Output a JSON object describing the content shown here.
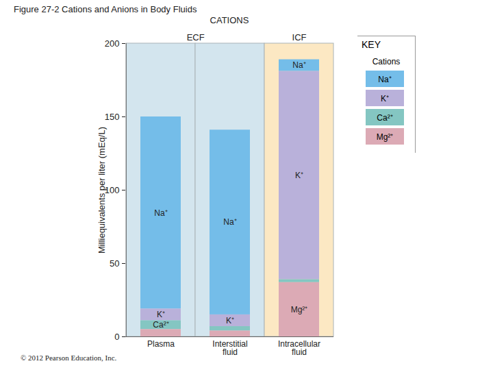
{
  "chart_data": {
    "type": "bar",
    "stacked": true,
    "title": "Figure 27-2 Cations and Anions in Body Fluids",
    "subtitle": "CATIONS",
    "caption": "© 2012 Pearson Education, Inc.",
    "y_label": "Milliequivalents per liter (mEq/L)",
    "categories": [
      "Plasma",
      "Interstitial fluid",
      "Intracellular fluid"
    ],
    "series": [
      {
        "name": "Na⁺",
        "color": "#74bde9",
        "values": [
          131,
          126,
          8
        ]
      },
      {
        "name": "K⁺",
        "color": "#b9b1da",
        "values": [
          8,
          8,
          142
        ]
      },
      {
        "name": "Ca²⁺",
        "color": "#84c6c2",
        "values": [
          6,
          3,
          2
        ]
      },
      {
        "name": "Mg²⁺",
        "color": "#dcaab5",
        "values": [
          5,
          4,
          37
        ]
      }
    ],
    "groups": [
      {
        "label": "ECF",
        "color": "#d3e5ee",
        "categories": [
          "Plasma",
          "Interstitial fluid"
        ]
      },
      {
        "label": "ICF",
        "color": "#fce8c3",
        "categories": [
          "Intracellular fluid"
        ]
      }
    ],
    "annotations": [
      {
        "text": "Na⁺",
        "category": "Plasma",
        "series": "Na⁺"
      },
      {
        "text": "K⁺",
        "category": "Plasma",
        "series": "K⁺"
      },
      {
        "text": "Ca²⁺",
        "category": "Plasma",
        "series": "Ca²⁺"
      },
      {
        "text": "Na⁺",
        "category": "Interstitial fluid",
        "series": "Na⁺"
      },
      {
        "text": "K⁺",
        "category": "Interstitial fluid",
        "series": "K⁺"
      },
      {
        "text": "Na⁺",
        "category": "Intracellular fluid",
        "series": "Na⁺"
      },
      {
        "text": "K⁺",
        "category": "Intracellular fluid",
        "series": "K⁺"
      },
      {
        "text": "Mg²⁺",
        "category": "Intracellular fluid",
        "series": "Mg²⁺"
      }
    ],
    "legend": "right",
    "legend_title": "KEY",
    "legend_heading": "Cations",
    "ylim": [
      0,
      200
    ],
    "yticks": [
      0,
      50,
      100,
      150,
      200
    ],
    "grid": false
  }
}
